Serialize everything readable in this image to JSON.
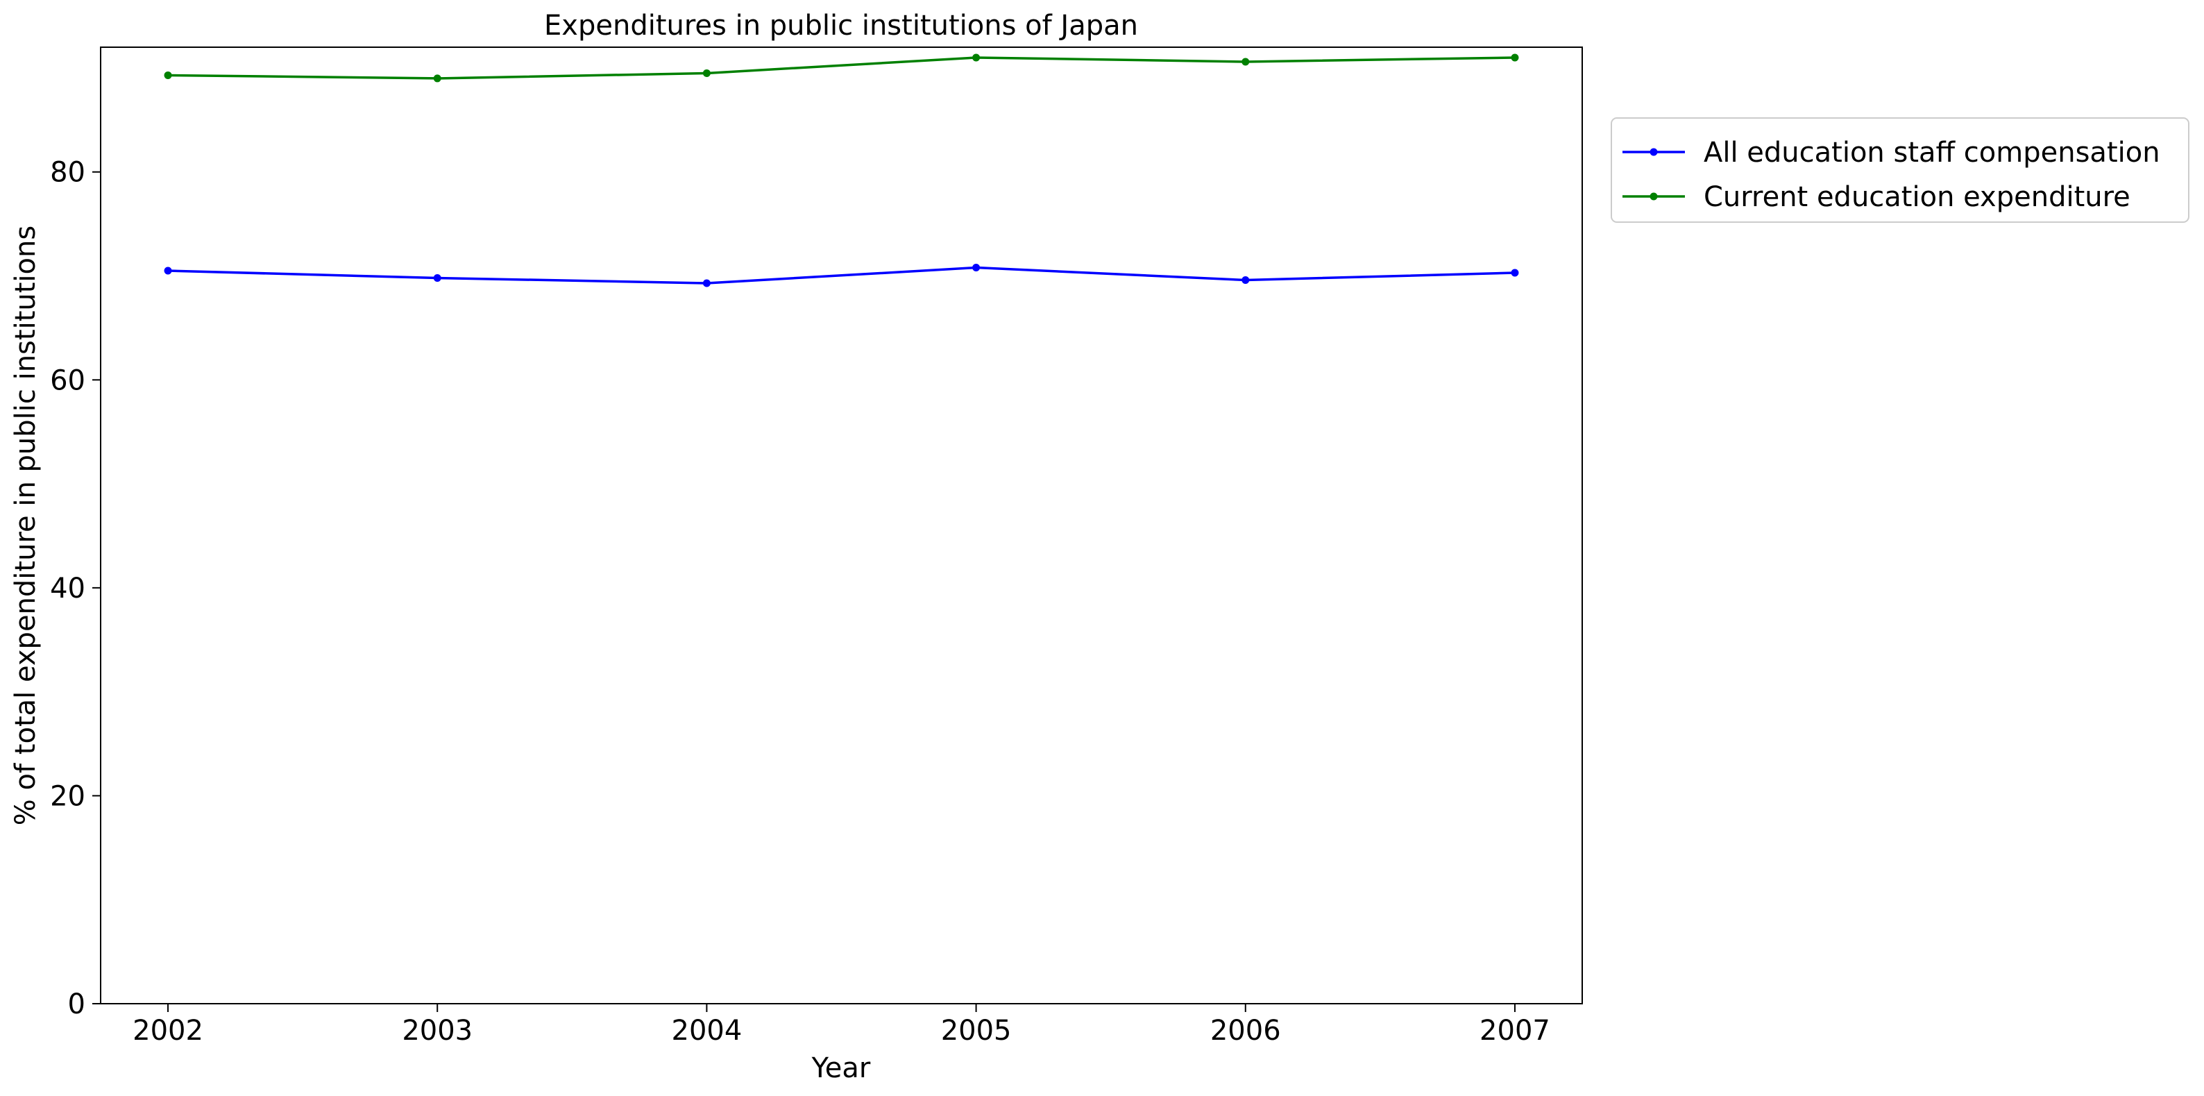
{
  "chart_data": {
    "type": "line",
    "title": "Expenditures in public institutions of Japan",
    "xlabel": "Year",
    "ylabel": "% of total expenditure in public institutions",
    "x": [
      "2002",
      "2003",
      "2004",
      "2005",
      "2006",
      "2007"
    ],
    "xlim": [
      2001.75,
      2007.25
    ],
    "ylim": [
      0,
      92
    ],
    "yticks": [
      "0",
      "20",
      "40",
      "60",
      "80"
    ],
    "grid": false,
    "legend_position": "outside-top-right",
    "series": [
      {
        "name": "All education staff compensation",
        "color": "#0000ff",
        "values": [
          70.5,
          69.8,
          69.3,
          70.8,
          69.6,
          70.3
        ]
      },
      {
        "name": "Current education expenditure",
        "color": "#008000",
        "values": [
          89.3,
          89.0,
          89.5,
          91.0,
          90.6,
          91.0
        ]
      }
    ]
  }
}
